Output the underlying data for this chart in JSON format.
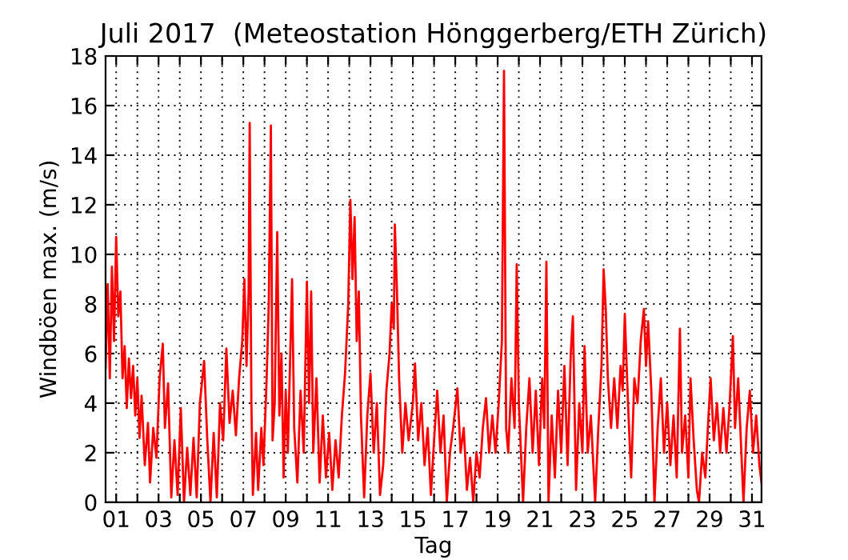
{
  "chart_data": {
    "type": "line",
    "title": "Juli 2017  (Meteostation Hönggerberg/ETH Zürich)",
    "xlabel": "Tag",
    "ylabel": "Windböen max. (m/s)",
    "x": [
      0.5,
      0.6,
      0.7,
      0.8,
      0.9,
      1.0,
      1.1,
      1.2,
      1.3,
      1.4,
      1.5,
      1.6,
      1.7,
      1.8,
      1.9,
      2.0,
      2.1,
      2.2,
      2.35,
      2.5,
      2.6,
      2.75,
      2.9,
      3.05,
      3.2,
      3.3,
      3.45,
      3.6,
      3.75,
      3.9,
      4.05,
      4.2,
      4.35,
      4.5,
      4.65,
      4.8,
      4.95,
      5.15,
      5.3,
      5.45,
      5.6,
      5.75,
      5.9,
      6.05,
      6.2,
      6.35,
      6.5,
      6.65,
      6.8,
      6.95,
      7.05,
      7.15,
      7.25,
      7.3,
      7.38,
      7.45,
      7.6,
      7.7,
      7.85,
      7.95,
      8.1,
      8.2,
      8.3,
      8.38,
      8.48,
      8.6,
      8.7,
      8.8,
      8.9,
      9.0,
      9.1,
      9.2,
      9.3,
      9.4,
      9.55,
      9.7,
      9.85,
      10.0,
      10.1,
      10.2,
      10.3,
      10.45,
      10.6,
      10.75,
      10.9,
      11.05,
      11.2,
      11.35,
      11.5,
      11.65,
      11.8,
      11.95,
      12.05,
      12.15,
      12.25,
      12.35,
      12.45,
      12.55,
      12.7,
      12.85,
      13.0,
      13.15,
      13.3,
      13.45,
      13.6,
      13.75,
      13.9,
      14.0,
      14.1,
      14.15,
      14.25,
      14.35,
      14.5,
      14.65,
      14.8,
      15.0,
      15.1,
      15.25,
      15.4,
      15.55,
      15.7,
      15.85,
      16.0,
      16.15,
      16.3,
      16.45,
      16.6,
      16.75,
      16.9,
      17.1,
      17.25,
      17.4,
      17.55,
      17.7,
      17.85,
      18.0,
      18.15,
      18.3,
      18.45,
      18.6,
      18.75,
      18.9,
      19.05,
      19.2,
      19.3,
      19.4,
      19.5,
      19.65,
      19.8,
      19.9,
      20.0,
      20.1,
      20.2,
      20.35,
      20.5,
      20.65,
      20.8,
      20.95,
      21.1,
      21.2,
      21.3,
      21.4,
      21.55,
      21.7,
      21.85,
      22.0,
      22.15,
      22.3,
      22.45,
      22.55,
      22.7,
      22.85,
      23.0,
      23.1,
      23.25,
      23.4,
      23.6,
      23.75,
      23.9,
      24.0,
      24.1,
      24.2,
      24.35,
      24.5,
      24.65,
      24.8,
      24.9,
      25.0,
      25.15,
      25.3,
      25.45,
      25.6,
      25.75,
      25.9,
      26.0,
      26.1,
      26.25,
      26.4,
      26.55,
      26.7,
      26.85,
      27.0,
      27.15,
      27.3,
      27.45,
      27.6,
      27.7,
      27.85,
      28.0,
      28.1,
      28.25,
      28.4,
      28.5,
      28.65,
      28.8,
      28.95,
      29.05,
      29.2,
      29.35,
      29.5,
      29.65,
      29.8,
      29.95,
      30.1,
      30.2,
      30.35,
      30.5,
      30.6,
      30.75,
      30.9,
      31.05,
      31.2,
      31.35,
      31.45
    ],
    "series": [
      {
        "color": "#ff0000",
        "values": [
          5.4,
          8.8,
          5.0,
          9.5,
          6.5,
          10.7,
          7.5,
          8.5,
          5.0,
          6.3,
          3.8,
          5.8,
          4.2,
          5.5,
          3.5,
          5.0,
          2.6,
          4.3,
          1.5,
          3.2,
          0.8,
          3.0,
          1.8,
          5.0,
          6.4,
          3.0,
          4.8,
          0.2,
          2.5,
          0.3,
          3.8,
          0,
          2.2,
          0.3,
          2.6,
          0.2,
          4.0,
          5.7,
          2.5,
          0,
          2.8,
          0.2,
          4.0,
          2.5,
          6.2,
          3.2,
          4.5,
          2.7,
          5.0,
          6.5,
          9.0,
          5.5,
          8.5,
          15.3,
          4.0,
          0.3,
          2.8,
          0.5,
          3.0,
          1.5,
          5.0,
          8.0,
          15.2,
          2.5,
          4.0,
          10.9,
          3.5,
          6.0,
          1.0,
          4.5,
          2.0,
          5.5,
          9.0,
          3.0,
          0.8,
          4.5,
          2.0,
          8.9,
          4.0,
          8.5,
          2.0,
          5.0,
          0.8,
          3.5,
          1.0,
          2.8,
          0.5,
          2.5,
          1.0,
          3.5,
          5.2,
          8.0,
          12.2,
          9.0,
          11.5,
          6.5,
          8.5,
          3.5,
          0.2,
          3.5,
          5.2,
          2.0,
          4.0,
          0.3,
          1.5,
          4.5,
          6.0,
          8.0,
          7.0,
          11.2,
          8.5,
          5.0,
          2.0,
          4.0,
          2.5,
          4.0,
          5.6,
          2.5,
          4.0,
          1.5,
          3.0,
          0.3,
          2.5,
          4.5,
          2.0,
          3.5,
          0,
          2.0,
          3.0,
          4.6,
          2.0,
          3.0,
          0.5,
          1.8,
          0,
          2.0,
          1.0,
          3.0,
          4.2,
          2.0,
          3.5,
          2.0,
          4.0,
          6.5,
          17.4,
          3.0,
          2.0,
          5.0,
          3.0,
          9.6,
          4.0,
          2.0,
          0,
          3.0,
          5.0,
          2.0,
          4.5,
          1.5,
          5.0,
          3.0,
          9.7,
          0,
          3.5,
          1.0,
          4.5,
          2.0,
          5.5,
          1.5,
          6.0,
          7.5,
          0.5,
          4.0,
          2.0,
          6.3,
          2.0,
          3.5,
          0,
          3.0,
          5.5,
          9.4,
          7.8,
          5.0,
          3.0,
          5.0,
          3.0,
          5.5,
          4.5,
          7.6,
          4.0,
          1.0,
          5.0,
          4.0,
          6.5,
          7.8,
          5.5,
          7.3,
          4.5,
          0,
          3.0,
          5.0,
          2.0,
          4.0,
          1.5,
          3.5,
          1.0,
          7.0,
          2.0,
          3.5,
          1.0,
          5.0,
          2.5,
          0.5,
          0,
          2.0,
          1.0,
          3.5,
          5.0,
          2.5,
          4.0,
          2.0,
          3.8,
          2.0,
          4.0,
          6.7,
          3.0,
          5.0,
          2.0,
          0,
          3.0,
          4.5,
          2.0,
          3.5,
          1.5,
          0.8
        ]
      }
    ],
    "xlim": [
      0.5,
      31.45
    ],
    "xticks": [
      {
        "value": 1,
        "label": "01"
      },
      {
        "value": 2,
        "label": null
      },
      {
        "value": 3,
        "label": "03"
      },
      {
        "value": 4,
        "label": null
      },
      {
        "value": 5,
        "label": "05"
      },
      {
        "value": 6,
        "label": null
      },
      {
        "value": 7,
        "label": "07"
      },
      {
        "value": 8,
        "label": null
      },
      {
        "value": 9,
        "label": "09"
      },
      {
        "value": 10,
        "label": null
      },
      {
        "value": 11,
        "label": "11"
      },
      {
        "value": 12,
        "label": null
      },
      {
        "value": 13,
        "label": "13"
      },
      {
        "value": 14,
        "label": null
      },
      {
        "value": 15,
        "label": "15"
      },
      {
        "value": 16,
        "label": null
      },
      {
        "value": 17,
        "label": "17"
      },
      {
        "value": 18,
        "label": null
      },
      {
        "value": 19,
        "label": "19"
      },
      {
        "value": 20,
        "label": null
      },
      {
        "value": 21,
        "label": "21"
      },
      {
        "value": 22,
        "label": null
      },
      {
        "value": 23,
        "label": "23"
      },
      {
        "value": 24,
        "label": null
      },
      {
        "value": 25,
        "label": "25"
      },
      {
        "value": 26,
        "label": null
      },
      {
        "value": 27,
        "label": "27"
      },
      {
        "value": 28,
        "label": null
      },
      {
        "value": 29,
        "label": "29"
      },
      {
        "value": 30,
        "label": null
      },
      {
        "value": 31,
        "label": "31"
      }
    ],
    "ylim": [
      0,
      18
    ],
    "yticks": [
      0,
      2,
      4,
      6,
      8,
      10,
      12,
      14,
      16,
      18
    ],
    "grid": true,
    "line_style": "solid",
    "legend": false
  }
}
